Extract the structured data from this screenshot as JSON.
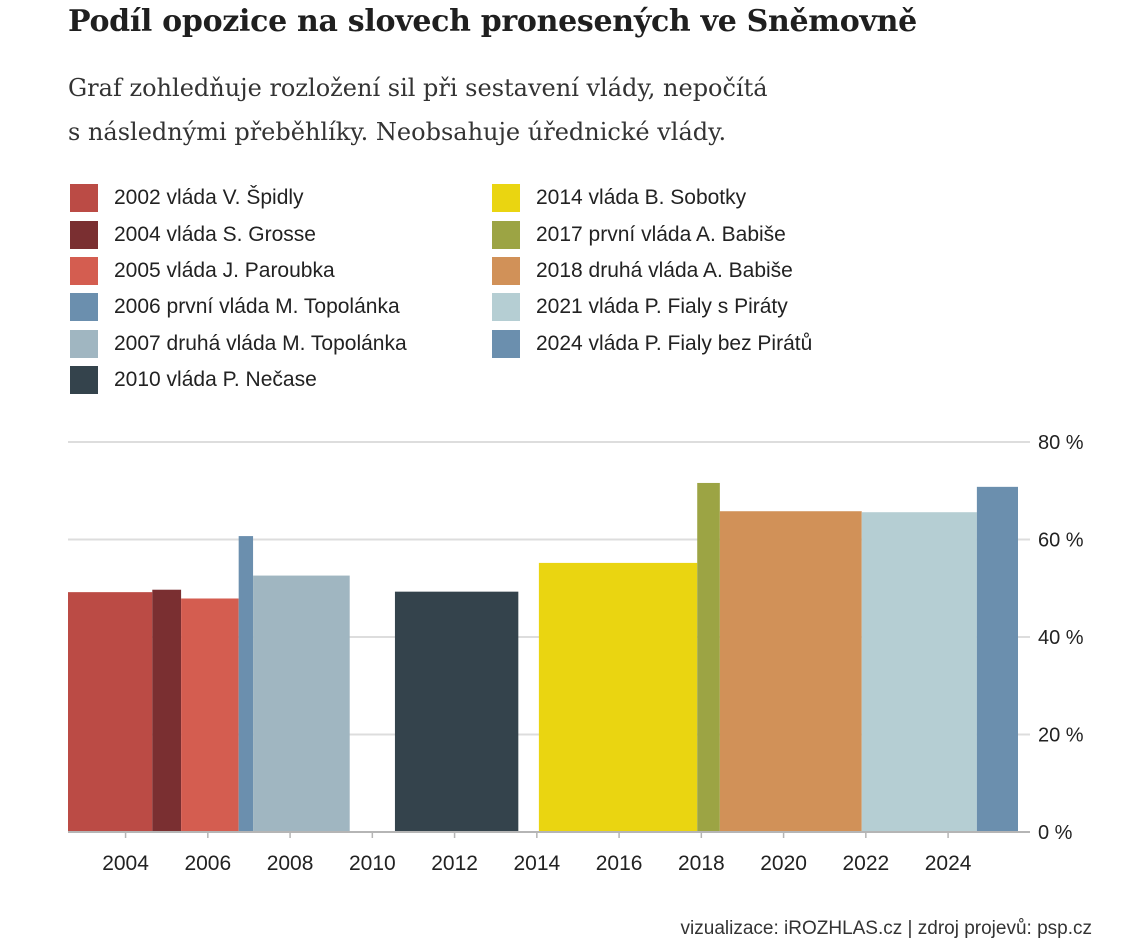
{
  "title": "Podíl opozice na slovech pronesených ve Sněmovně",
  "subtitle_lines": [
    "Graf zohledňuje rozložení sil při sestavení vlády, nepočítá",
    "s následnými přeběhlíky. Neobsahuje úřednické vlády."
  ],
  "footer": "vizualizace: iROZHLAS.cz | zdroj projevů: psp.cz",
  "chart_data": {
    "type": "bar",
    "title": "Podíl opozice na slovech pronesených ve Sněmovně",
    "ylim": [
      0,
      80
    ],
    "yticks": [
      0,
      20,
      40,
      60,
      80
    ],
    "ytick_labels": [
      "0 %",
      "20 %",
      "40 %",
      "60 %",
      "80 %"
    ],
    "xlim": [
      2002.6,
      2025.7
    ],
    "xticks": [
      2004,
      2006,
      2008,
      2010,
      2012,
      2014,
      2016,
      2018,
      2020,
      2022,
      2024
    ],
    "xtick_labels": [
      "2004",
      "2006",
      "2008",
      "2010",
      "2012",
      "2014",
      "2016",
      "2018",
      "2020",
      "2022",
      "2024"
    ],
    "y_axis_position": "right",
    "grid": true,
    "bars": [
      {
        "label": "2002 vláda V. Špidly",
        "start": 2002.6,
        "end": 2004.65,
        "value": 49.2,
        "color": "#bb4b45"
      },
      {
        "label": "2004 vláda S. Grosse",
        "start": 2004.65,
        "end": 2005.35,
        "value": 49.7,
        "color": "#7a2f31"
      },
      {
        "label": "2005 vláda J. Paroubka",
        "start": 2005.35,
        "end": 2006.75,
        "value": 47.9,
        "color": "#d45d50"
      },
      {
        "label": "2006 první vláda M. Topolánka",
        "start": 2006.75,
        "end": 2007.1,
        "value": 60.7,
        "color": "#6b8fae"
      },
      {
        "label": "2007 druhá vláda M. Topolánka",
        "start": 2007.1,
        "end": 2009.45,
        "value": 52.6,
        "color": "#a0b6c1"
      },
      {
        "label": "2010 vláda P. Nečase",
        "start": 2010.55,
        "end": 2013.55,
        "value": 49.3,
        "color": "#34434c"
      },
      {
        "label": "2014 vláda B. Sobotky",
        "start": 2014.05,
        "end": 2017.9,
        "value": 55.2,
        "color": "#ead511"
      },
      {
        "label": "2017 první vláda A. Babiše",
        "start": 2017.9,
        "end": 2018.45,
        "value": 71.6,
        "color": "#9ca444"
      },
      {
        "label": "2018 druhá vláda A. Babiše",
        "start": 2018.45,
        "end": 2021.9,
        "value": 65.8,
        "color": "#d19158"
      },
      {
        "label": "2021 vláda P. Fialy s Piráty",
        "start": 2021.9,
        "end": 2024.7,
        "value": 65.6,
        "color": "#b5ced3"
      },
      {
        "label": "2024 vláda P. Fialy bez Pirátů",
        "start": 2024.7,
        "end": 2025.7,
        "value": 70.8,
        "color": "#6b8fae"
      }
    ],
    "legend": {
      "placement": "top-left",
      "columns": [
        [
          0,
          1,
          2,
          3,
          4,
          5
        ],
        [
          6,
          7,
          8,
          9,
          10
        ]
      ]
    }
  }
}
